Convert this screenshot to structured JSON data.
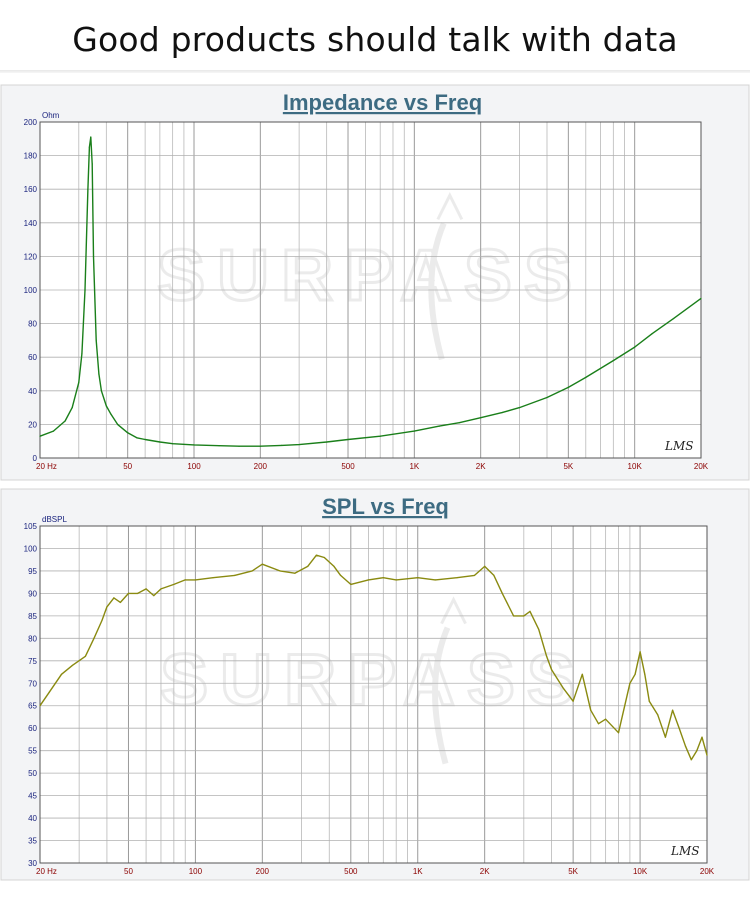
{
  "page": {
    "title": "Good products should talk with data"
  },
  "chart_data": [
    {
      "type": "line",
      "title": "Impedance vs Freq",
      "ylabel": "Ohm",
      "xlabel": "",
      "xscale": "log",
      "xlim": [
        20,
        20000
      ],
      "ylim": [
        0,
        200
      ],
      "grid": true,
      "watermark": "SURPASS",
      "badge": "LMS",
      "yticks": [
        0,
        20,
        40,
        60,
        80,
        100,
        120,
        140,
        160,
        180,
        200
      ],
      "xticks": [
        {
          "v": 20,
          "label": "20  Hz"
        },
        {
          "v": 50,
          "label": "50"
        },
        {
          "v": 100,
          "label": "100"
        },
        {
          "v": 200,
          "label": "200"
        },
        {
          "v": 500,
          "label": "500"
        },
        {
          "v": 1000,
          "label": "1K"
        },
        {
          "v": 2000,
          "label": "2K"
        },
        {
          "v": 5000,
          "label": "5K"
        },
        {
          "v": 10000,
          "label": "10K"
        },
        {
          "v": 20000,
          "label": "20K"
        }
      ],
      "line_color": "#1a7f1a",
      "series": [
        {
          "x": [
            20,
            23,
            26,
            28,
            30,
            31,
            32,
            33,
            33.5,
            34,
            34.5,
            35,
            36,
            37,
            38,
            40,
            42,
            45,
            50,
            55,
            60,
            70,
            80,
            100,
            130,
            160,
            200,
            250,
            300,
            400,
            500,
            700,
            1000,
            1300,
            1600,
            2000,
            2500,
            3000,
            4000,
            5000,
            6000,
            8000,
            10000,
            12000,
            15000,
            20000
          ],
          "y": [
            13,
            16,
            22,
            30,
            45,
            62,
            100,
            160,
            185,
            191,
            175,
            120,
            70,
            50,
            40,
            31,
            26,
            20,
            15,
            12,
            11,
            9.5,
            8.5,
            7.8,
            7.3,
            7,
            7,
            7.5,
            8,
            9.5,
            11,
            13,
            16,
            19,
            21,
            24,
            27,
            30,
            36,
            42,
            48,
            58,
            66,
            74,
            83,
            95
          ]
        }
      ]
    },
    {
      "type": "line",
      "title": "SPL vs Freq",
      "ylabel": "dBSPL",
      "xlabel": "",
      "xscale": "log",
      "xlim": [
        20,
        20000
      ],
      "ylim": [
        30,
        105
      ],
      "grid": true,
      "watermark": "SURPASS",
      "badge": "LMS",
      "yticks": [
        30,
        35,
        40,
        45,
        50,
        55,
        60,
        65,
        70,
        75,
        80,
        85,
        90,
        95,
        100,
        105
      ],
      "xticks": [
        {
          "v": 20,
          "label": "20  Hz"
        },
        {
          "v": 50,
          "label": "50"
        },
        {
          "v": 100,
          "label": "100"
        },
        {
          "v": 200,
          "label": "200"
        },
        {
          "v": 500,
          "label": "500"
        },
        {
          "v": 1000,
          "label": "1K"
        },
        {
          "v": 2000,
          "label": "2K"
        },
        {
          "v": 5000,
          "label": "5K"
        },
        {
          "v": 10000,
          "label": "10K"
        },
        {
          "v": 20000,
          "label": "20K"
        }
      ],
      "line_color": "#8a8a10",
      "series": [
        {
          "x": [
            20,
            22,
            25,
            28,
            32,
            35,
            38,
            40,
            43,
            46,
            50,
            55,
            60,
            65,
            70,
            80,
            90,
            100,
            120,
            150,
            180,
            200,
            240,
            280,
            320,
            350,
            380,
            420,
            450,
            500,
            600,
            700,
            800,
            1000,
            1200,
            1500,
            1800,
            2000,
            2200,
            2400,
            2700,
            3000,
            3200,
            3500,
            3800,
            4000,
            4500,
            5000,
            5500,
            6000,
            6500,
            7000,
            8000,
            9000,
            9500,
            10000,
            10500,
            11000,
            12000,
            13000,
            14000,
            15000,
            16000,
            17000,
            18000,
            19000,
            20000
          ],
          "y": [
            65,
            68,
            72,
            74,
            76,
            80,
            84,
            87,
            89,
            88,
            90,
            90,
            91,
            89.5,
            91,
            92,
            93,
            93,
            93.5,
            94,
            95,
            96.5,
            95,
            94.5,
            96,
            98.5,
            98,
            96,
            94,
            92,
            93,
            93.5,
            93,
            93.5,
            93,
            93.5,
            94,
            96,
            94,
            90,
            85,
            85,
            86,
            82,
            76,
            73,
            69,
            66,
            72,
            64,
            61,
            62,
            59,
            70,
            72,
            77,
            72,
            66,
            63,
            58,
            64,
            60,
            56,
            53,
            55,
            58,
            54
          ]
        }
      ]
    }
  ]
}
